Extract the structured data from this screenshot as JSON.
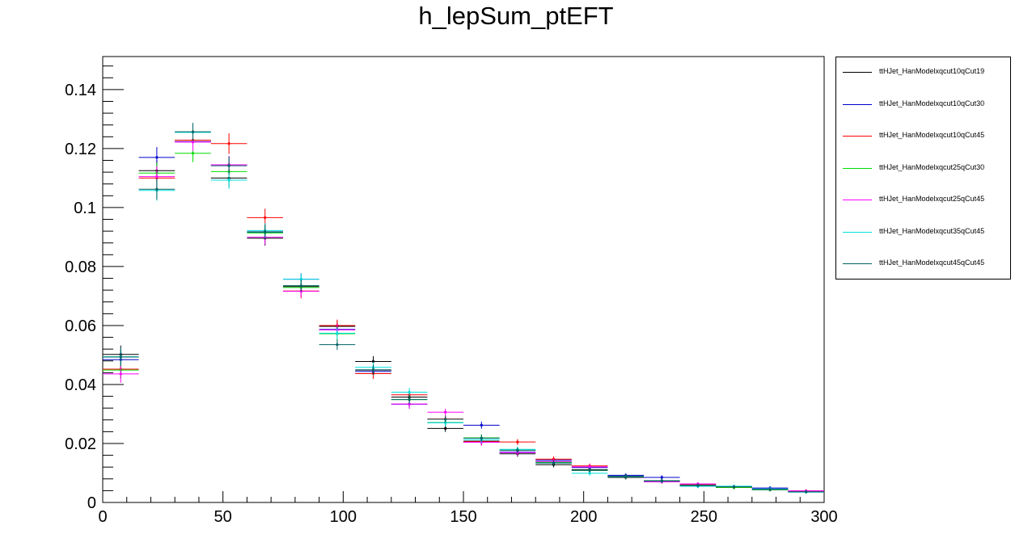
{
  "chart_data": {
    "type": "scatter",
    "title": "h_lepSum_ptEFT",
    "xlabel": "",
    "ylabel": "",
    "xlim": [
      0,
      300
    ],
    "ylim": [
      0,
      0.1512
    ],
    "x_ticks": [
      "0",
      "50",
      "100",
      "150",
      "200",
      "250",
      "300"
    ],
    "y_ticks": [
      "0",
      "0.02",
      "0.04",
      "0.06",
      "0.08",
      "0.1",
      "0.12",
      "0.14"
    ],
    "grid": false,
    "legend_position": "outside-right",
    "bin_edges": [
      0,
      15,
      30,
      45,
      60,
      75,
      90,
      105,
      120,
      135,
      150,
      165,
      180,
      195,
      210,
      225,
      240,
      255,
      270,
      285,
      300
    ],
    "series": [
      {
        "name": "ttHJet_HanModelxqcut10qCut19",
        "color": "#000000",
        "values": [
          0.0502,
          0.1125,
          0.1228,
          0.11,
          0.0896,
          0.0732,
          0.0597,
          0.0478,
          0.0357,
          0.0251,
          0.0208,
          0.0165,
          0.0128,
          0.0111,
          0.0085,
          0.0074,
          0.0059,
          0.0051,
          0.0043,
          0.0036
        ],
        "errors": [
          0.003,
          0.0035,
          0.003,
          0.003,
          0.0025,
          0.002,
          0.002,
          0.0018,
          0.0015,
          0.0012,
          0.0012,
          0.001,
          0.0009,
          0.0008,
          0.0007,
          0.0007,
          0.0006,
          0.0006,
          0.0006,
          0.0005
        ]
      },
      {
        "name": "ttHJet_HanModelxqcut10qCut30",
        "color": "#0000cc",
        "values": [
          0.0484,
          0.117,
          0.1223,
          0.1145,
          0.0915,
          0.0757,
          0.0587,
          0.0444,
          0.0333,
          0.0271,
          0.0262,
          0.0171,
          0.0143,
          0.0118,
          0.0092,
          0.0085,
          0.0055,
          0.0053,
          0.0049,
          0.0039
        ],
        "errors": [
          0.003,
          0.0035,
          0.003,
          0.003,
          0.0025,
          0.002,
          0.002,
          0.0018,
          0.0015,
          0.0012,
          0.0012,
          0.001,
          0.0009,
          0.0008,
          0.0007,
          0.0007,
          0.0006,
          0.0006,
          0.0006,
          0.0005
        ]
      },
      {
        "name": "ttHJet_HanModelxqcut10qCut45",
        "color": "#ff0000",
        "values": [
          0.0452,
          0.11,
          0.1228,
          0.1217,
          0.0966,
          0.0717,
          0.06,
          0.0437,
          0.0365,
          0.0283,
          0.0206,
          0.0205,
          0.0147,
          0.0124,
          0.0089,
          0.0073,
          0.0062,
          0.0051,
          0.0044,
          0.0039
        ],
        "errors": [
          0.003,
          0.0035,
          0.003,
          0.0035,
          0.003,
          0.0025,
          0.002,
          0.0018,
          0.0015,
          0.0012,
          0.0012,
          0.001,
          0.0009,
          0.0008,
          0.0007,
          0.0007,
          0.0006,
          0.0006,
          0.0006,
          0.0005
        ]
      },
      {
        "name": "ttHJet_HanModelxqcut25qCut30",
        "color": "#00dd00",
        "values": [
          0.0449,
          0.1117,
          0.1184,
          0.1122,
          0.0914,
          0.0729,
          0.0572,
          0.0448,
          0.0349,
          0.0271,
          0.0219,
          0.0177,
          0.0137,
          0.0109,
          0.0089,
          0.0073,
          0.0057,
          0.0051,
          0.0043,
          0.0036
        ],
        "errors": [
          0.003,
          0.0035,
          0.003,
          0.003,
          0.0025,
          0.002,
          0.002,
          0.0018,
          0.0015,
          0.0012,
          0.0012,
          0.001,
          0.0009,
          0.0008,
          0.0007,
          0.0007,
          0.0006,
          0.0006,
          0.0006,
          0.0005
        ]
      },
      {
        "name": "ttHJet_HanModelxqcut25qCut45",
        "color": "#ff00ff",
        "values": [
          0.0436,
          0.1105,
          0.1222,
          0.1145,
          0.0899,
          0.0716,
          0.0585,
          0.0449,
          0.0334,
          0.0306,
          0.0204,
          0.0169,
          0.0139,
          0.0121,
          0.0089,
          0.007,
          0.0063,
          0.0054,
          0.0046,
          0.0039
        ],
        "errors": [
          0.003,
          0.0035,
          0.003,
          0.003,
          0.0025,
          0.002,
          0.002,
          0.0018,
          0.0015,
          0.0012,
          0.0012,
          0.001,
          0.0009,
          0.0008,
          0.0007,
          0.0007,
          0.0006,
          0.0006,
          0.0006,
          0.0005
        ]
      },
      {
        "name": "ttHJet_HanModelxqcut35qCut45",
        "color": "#00e0e0",
        "values": [
          0.0494,
          0.1058,
          0.1255,
          0.1093,
          0.0922,
          0.0757,
          0.0574,
          0.0458,
          0.0374,
          0.027,
          0.0213,
          0.018,
          0.0134,
          0.0099,
          0.0088,
          0.0073,
          0.0055,
          0.0055,
          0.0046,
          0.0035
        ],
        "errors": [
          0.003,
          0.0035,
          0.003,
          0.003,
          0.0025,
          0.002,
          0.002,
          0.0018,
          0.0015,
          0.0012,
          0.0012,
          0.001,
          0.0009,
          0.0008,
          0.0007,
          0.0007,
          0.0006,
          0.0006,
          0.0006,
          0.0005
        ]
      },
      {
        "name": "ttHJet_HanModelxqcut45qCut45",
        "color": "#006060",
        "values": [
          0.0493,
          0.1062,
          0.1257,
          0.1142,
          0.0918,
          0.0735,
          0.0535,
          0.045,
          0.0349,
          0.0282,
          0.0218,
          0.0177,
          0.0134,
          0.0109,
          0.0089,
          0.0073,
          0.0058,
          0.0053,
          0.0044,
          0.0036
        ],
        "errors": [
          0.003,
          0.0035,
          0.003,
          0.003,
          0.0025,
          0.002,
          0.0018,
          0.0018,
          0.0015,
          0.0012,
          0.0012,
          0.001,
          0.0009,
          0.0008,
          0.0007,
          0.0007,
          0.0006,
          0.0006,
          0.0006,
          0.0005
        ]
      }
    ]
  }
}
